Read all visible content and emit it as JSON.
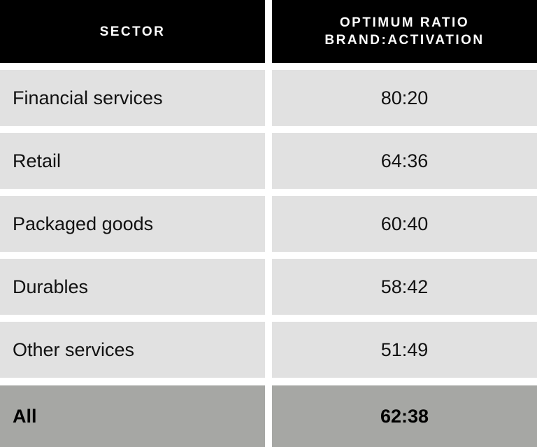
{
  "table": {
    "header": [
      "SECTOR",
      [
        "OPTIMUM RATIO",
        "BRAND:ACTIVATION"
      ]
    ],
    "rows": [
      [
        "Financial services",
        "80:20"
      ],
      [
        "Retail",
        "64:36"
      ],
      [
        "Packaged goods",
        "60:40"
      ],
      [
        "Durables",
        "58:42"
      ],
      [
        "Other services",
        "51:49"
      ]
    ],
    "total": [
      "All",
      "62:38"
    ]
  }
}
